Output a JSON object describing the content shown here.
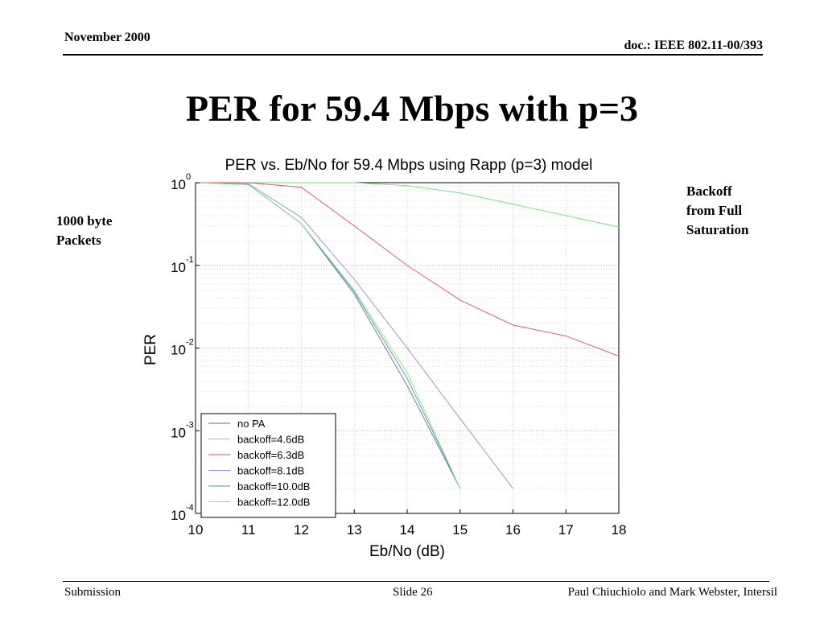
{
  "header": {
    "date": "November 2000",
    "doc_id": "doc.: IEEE 802.11-00/393"
  },
  "slide_title": "PER for 59.4 Mbps with p=3",
  "side_notes": {
    "left": [
      "1000 byte",
      "Packets"
    ],
    "right": [
      "Backoff",
      "from Full",
      "Saturation"
    ]
  },
  "footer": {
    "left": "Submission",
    "center": "Slide 26",
    "right": "Paul Chiuchiolo and Mark Webster, Intersil"
  },
  "chart_data": {
    "type": "line",
    "title": "PER vs. Eb/No for 59.4 Mbps using Rapp (p=3) model",
    "xlabel": "Eb/No (dB)",
    "ylabel": "PER",
    "xlim": [
      10,
      18
    ],
    "ylim": [
      0.0001,
      1
    ],
    "yscale": "log",
    "grid": true,
    "legend_position": "bottom-left",
    "x_ticks": [
      10,
      11,
      12,
      13,
      14,
      15,
      16,
      17,
      18
    ],
    "y_ticks": [
      {
        "value": 1,
        "base": "10",
        "exp": "0"
      },
      {
        "value": 0.1,
        "base": "10",
        "exp": "-1"
      },
      {
        "value": 0.01,
        "base": "10",
        "exp": "-2"
      },
      {
        "value": 0.001,
        "base": "10",
        "exp": "-3"
      },
      {
        "value": 0.0001,
        "base": "10",
        "exp": "-4"
      }
    ],
    "series": [
      {
        "name": "no PA",
        "color": "#5b6fb0",
        "x": [
          10,
          11,
          12,
          13,
          14,
          15
        ],
        "y": [
          1,
          0.95,
          0.32,
          0.045,
          0.0035,
          0.0002
        ]
      },
      {
        "name": "backoff=4.6dB",
        "color": "#6ee06e",
        "x": [
          10,
          11,
          12,
          13,
          14,
          15,
          16,
          17,
          18
        ],
        "y": [
          1,
          1,
          1,
          1,
          0.92,
          0.75,
          0.55,
          0.4,
          0.29
        ]
      },
      {
        "name": "backoff=6.3dB",
        "color": "#e05050",
        "x": [
          10,
          11,
          12,
          13,
          14,
          15,
          16,
          17,
          18
        ],
        "y": [
          1,
          1,
          0.88,
          0.3,
          0.1,
          0.038,
          0.019,
          0.014,
          0.008
        ]
      },
      {
        "name": "backoff=8.1dB",
        "color": "#8a8ae8",
        "x": [
          10,
          11,
          12,
          13,
          14,
          15,
          16
        ],
        "y": [
          1,
          0.97,
          0.38,
          0.068,
          0.01,
          0.0014,
          0.0002
        ]
      },
      {
        "name": "backoff=10.0dB",
        "color": "#4f90a8",
        "x": [
          10,
          11,
          12,
          13,
          14,
          15
        ],
        "y": [
          1,
          0.95,
          0.32,
          0.048,
          0.0043,
          0.0002
        ]
      },
      {
        "name": "backoff=12.0dB",
        "color": "#80e880",
        "x": [
          10,
          11,
          12,
          13,
          14,
          15
        ],
        "y": [
          1,
          0.95,
          0.32,
          0.05,
          0.005,
          0.0002
        ]
      }
    ]
  }
}
